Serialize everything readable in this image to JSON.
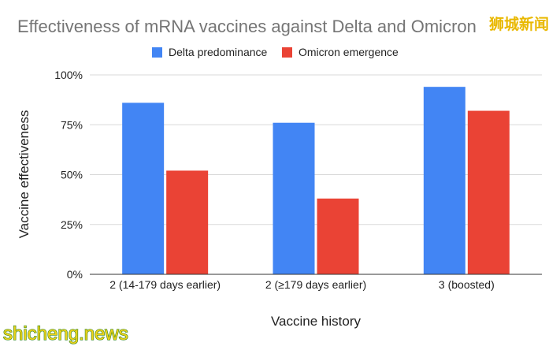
{
  "chart_data": {
    "type": "bar",
    "title": "Effectiveness of mRNA vaccines against Delta and Omicron",
    "xlabel": "Vaccine history",
    "ylabel": "Vaccine effectiveness",
    "categories": [
      "2 (14-179 days earlier)",
      "2 (≥179 days earlier)",
      "3 (boosted)"
    ],
    "series": [
      {
        "name": "Delta predominance",
        "color": "#4285f4",
        "values": [
          86,
          76,
          94
        ]
      },
      {
        "name": "Omicron emergence",
        "color": "#ea4335",
        "values": [
          52,
          38,
          82
        ]
      }
    ],
    "ylim": [
      0,
      100
    ],
    "yticks": [
      0,
      25,
      50,
      75,
      100
    ],
    "ytick_labels": [
      "0%",
      "25%",
      "50%",
      "75%",
      "100%"
    ],
    "grid": true,
    "legend_position": "top-center"
  },
  "watermarks": {
    "top_right": "狮城新闻",
    "bottom_left": "shicheng.news"
  }
}
